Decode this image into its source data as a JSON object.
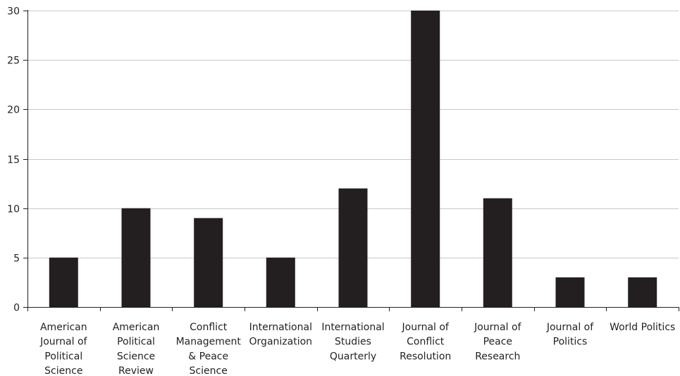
{
  "chart_data": {
    "type": "bar",
    "title": "",
    "xlabel": "",
    "ylabel": "",
    "ylim": [
      0,
      30
    ],
    "yticks": [
      0,
      5,
      10,
      15,
      20,
      25,
      30
    ],
    "ytick_labels": [
      "0",
      "5",
      "10",
      "15",
      "20",
      "25",
      "30"
    ],
    "grid": "horizontal",
    "categories": [
      "American Journal of Political Science",
      "American Political Science Review",
      "Conflict Management & Peace Science",
      "International Organization",
      "International Studies Quarterly",
      "Journal of Conflict Resolution",
      "Journal of Peace Research",
      "Journal of Politics",
      "World Politics"
    ],
    "category_label_lines": [
      [
        "American",
        "Journal of",
        "Political",
        "Science"
      ],
      [
        "American",
        "Political",
        "Science",
        "Review"
      ],
      [
        "Conflict",
        "Management",
        "& Peace",
        "Science"
      ],
      [
        "International",
        "Organization"
      ],
      [
        "International",
        "Studies",
        "Quarterly"
      ],
      [
        "Journal of",
        "Conflict",
        "Resolution"
      ],
      [
        "Journal of",
        "Peace",
        "Research"
      ],
      [
        "Journal of",
        "Politics"
      ],
      [
        "World Politics"
      ]
    ],
    "values": [
      5,
      10,
      9,
      5,
      12,
      30,
      11,
      3,
      3
    ],
    "colors": {
      "bar": "#231f20",
      "gridline": "#c8c8c8",
      "axis": "#231f20",
      "text": "#231f20"
    }
  }
}
